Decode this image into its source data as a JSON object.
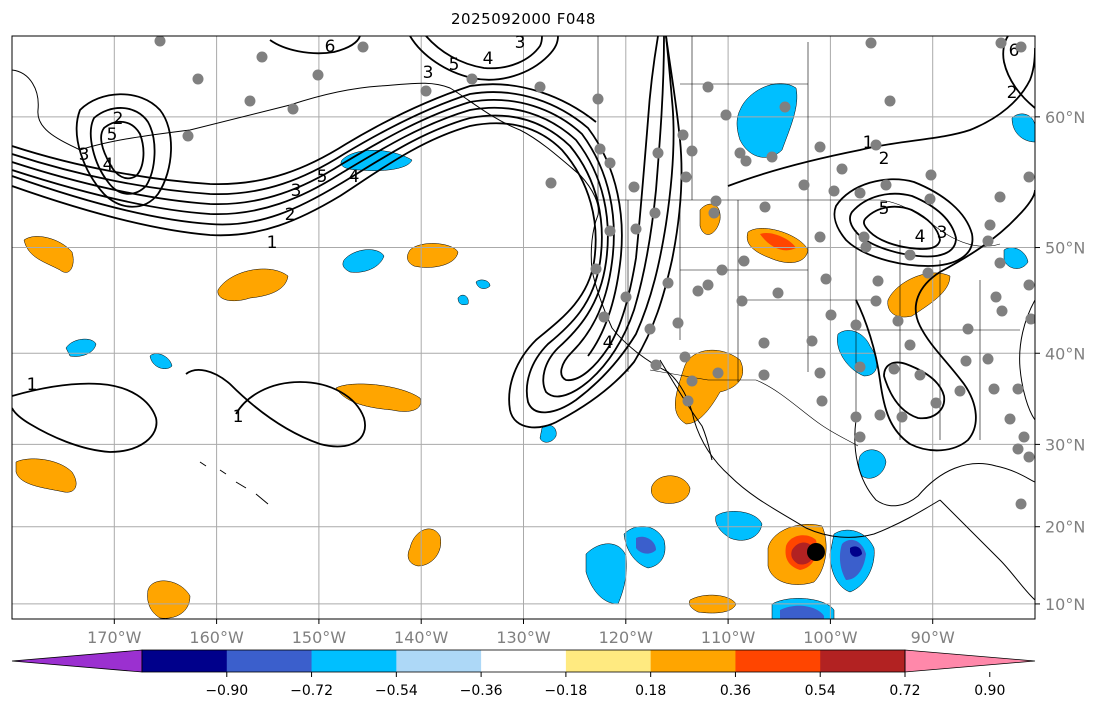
{
  "title": "2025092000 F048",
  "longitude_ticks": [
    {
      "lon": -170,
      "label": "170°W"
    },
    {
      "lon": -160,
      "label": "160°W"
    },
    {
      "lon": -150,
      "label": "150°W"
    },
    {
      "lon": -140,
      "label": "140°W"
    },
    {
      "lon": -130,
      "label": "130°W"
    },
    {
      "lon": -120,
      "label": "120°W"
    },
    {
      "lon": -110,
      "label": "110°W"
    },
    {
      "lon": -100,
      "label": "100°W"
    },
    {
      "lon": -90,
      "label": "90°W"
    }
  ],
  "latitude_ticks": [
    {
      "lat": 10,
      "label": "10°N"
    },
    {
      "lat": 20,
      "label": "20°N"
    },
    {
      "lat": 30,
      "label": "30°N"
    },
    {
      "lat": 40,
      "label": "40°N"
    },
    {
      "lat": 50,
      "label": "50°N"
    },
    {
      "lat": 60,
      "label": "60°N"
    }
  ],
  "map_extent": {
    "lon_min": -180,
    "lon_max": -80,
    "lat_min": 8,
    "lat_max": 65
  },
  "colorbar": {
    "extend": "both",
    "colors": [
      "#9b30d0",
      "#00008b",
      "#3b5fcc",
      "#00bfff",
      "#add8f7",
      "#ffffff",
      "#ffea80",
      "#ffa500",
      "#ff4500",
      "#b22222",
      "#ff88aa"
    ],
    "tick_labels": [
      "−0.90",
      "−0.72",
      "−0.54",
      "−0.36",
      "−0.18",
      "0.18",
      "0.36",
      "0.54",
      "0.72",
      "0.90"
    ]
  },
  "contour_labels": [
    "1",
    "1",
    "2",
    "3",
    "4",
    "5",
    "6",
    "1",
    "2",
    "3",
    "4",
    "5",
    "6",
    "5",
    "4",
    "3",
    "4",
    "5",
    "3",
    "4",
    "2",
    "1",
    "3",
    "2"
  ],
  "colors": {
    "positive_fill": "#ffa500",
    "negative_fill": "#00bfff",
    "grid": "#aaaaaa",
    "station_dot": "#808080",
    "tick_label": "#808080"
  }
}
